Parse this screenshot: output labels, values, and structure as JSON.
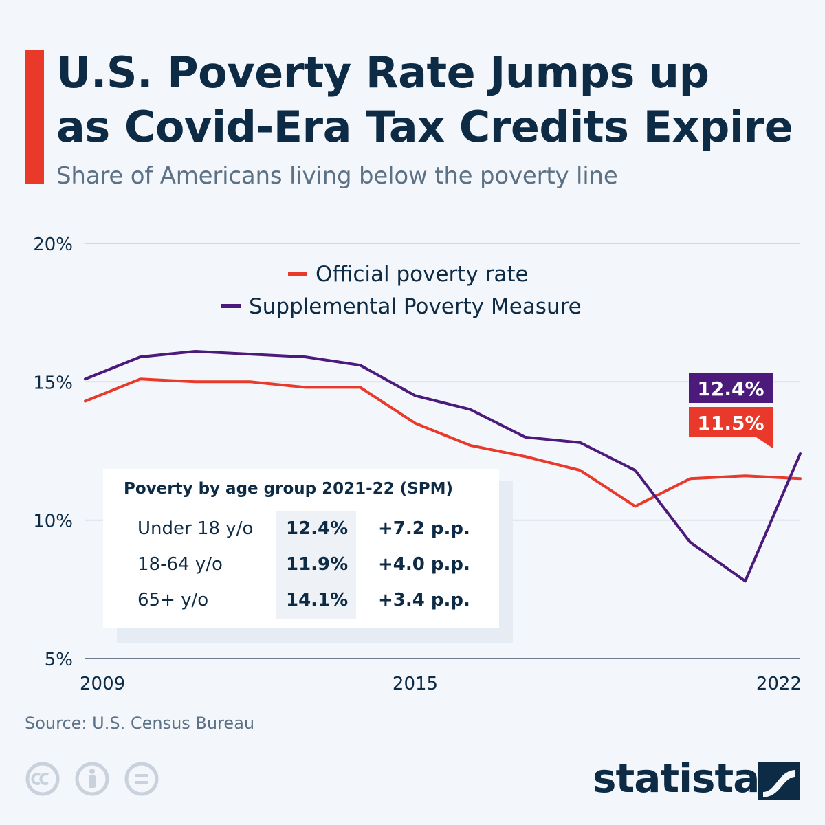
{
  "header": {
    "title_line1": "U.S. Poverty Rate Jumps up",
    "title_line2": "as Covid-Era Tax Credits Expire",
    "subtitle": "Share of Americans living below the poverty line"
  },
  "colors": {
    "official": "#e8392b",
    "spm": "#4b1a7a",
    "grid": "#c5ced8",
    "text": "#0d2b45"
  },
  "chart_data": {
    "type": "line",
    "x": [
      2009,
      2010,
      2011,
      2012,
      2013,
      2014,
      2015,
      2016,
      2017,
      2018,
      2019,
      2020,
      2021,
      2022
    ],
    "x_tick_labels": [
      "2009",
      "2015",
      "2022"
    ],
    "x_ticks": [
      2009,
      2015,
      2022
    ],
    "y_ticks": [
      5,
      10,
      15,
      20
    ],
    "y_tick_labels": [
      "5%",
      "10%",
      "15%",
      "20%"
    ],
    "ylim": [
      5,
      20
    ],
    "xlim": [
      2009,
      2022
    ],
    "series": [
      {
        "name": "Official poverty rate",
        "color": "#e8392b",
        "values": [
          14.3,
          15.1,
          15.0,
          15.0,
          14.8,
          14.8,
          13.5,
          12.7,
          12.3,
          11.8,
          10.5,
          11.5,
          11.6,
          11.5
        ],
        "end_label": "11.5%"
      },
      {
        "name": "Supplemental Poverty Measure",
        "color": "#4b1a7a",
        "values": [
          15.1,
          15.9,
          16.1,
          16.0,
          15.9,
          15.6,
          14.5,
          14.0,
          13.0,
          12.8,
          11.8,
          9.2,
          7.8,
          12.4
        ],
        "end_label": "12.4%"
      }
    ],
    "legend": [
      "Official poverty rate",
      "Supplemental Poverty Measure"
    ],
    "legend_position": "top-center"
  },
  "age_table": {
    "title": "Poverty by age group 2021-22 (SPM)",
    "rows": [
      {
        "group": "Under 18 y/o",
        "value": "12.4%",
        "change": "+7.2 p.p."
      },
      {
        "group": "18-64 y/o",
        "value": "11.9%",
        "change": "+4.0 p.p."
      },
      {
        "group": "65+ y/o",
        "value": "14.1%",
        "change": "+3.4 p.p."
      }
    ]
  },
  "footer": {
    "source": "Source: U.S. Census Bureau",
    "brand": "statista"
  }
}
